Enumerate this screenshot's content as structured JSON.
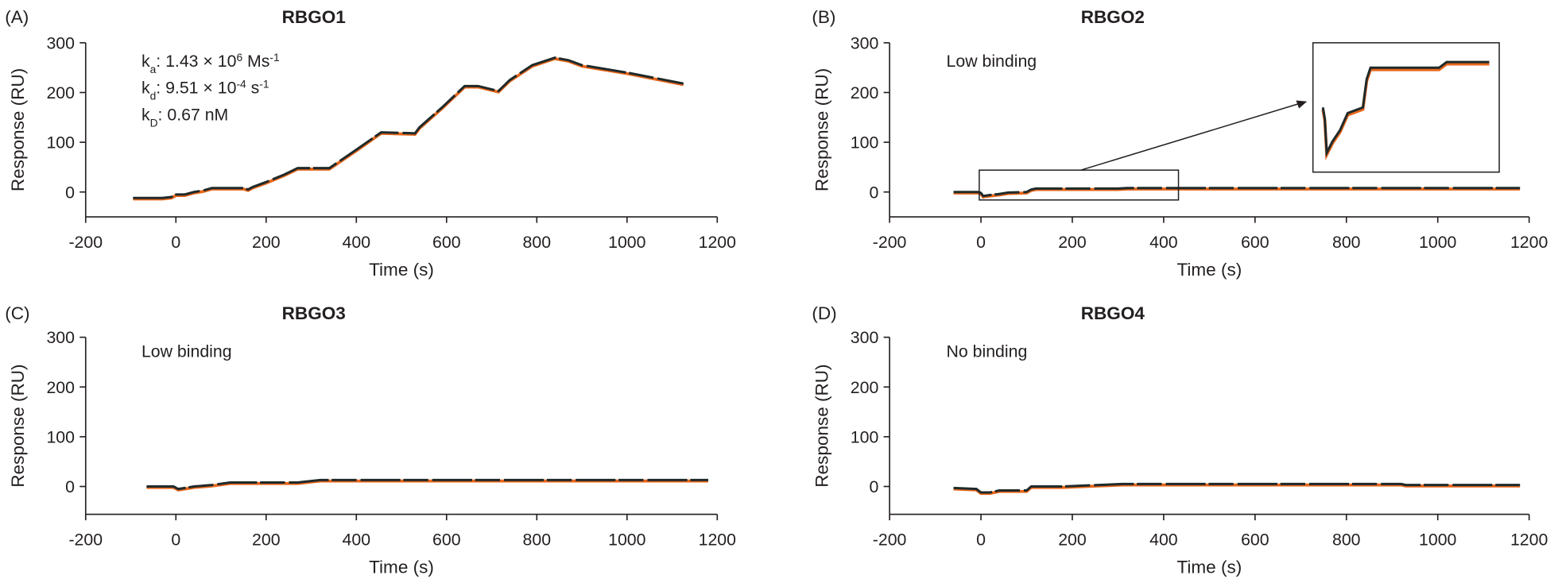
{
  "colors": {
    "measured": "#1f2a2a",
    "fit": "#e8671c",
    "axis": "#231f20"
  },
  "chart_data": [
    {
      "type": "line",
      "panel_label": "(A)",
      "title": "RBGO1",
      "xlabel": "Time (s)",
      "ylabel": "Response (RU)",
      "xlim": [
        -200,
        1200
      ],
      "ylim": [
        -50,
        300
      ],
      "xticks": [
        -200,
        0,
        200,
        400,
        600,
        800,
        1000,
        1200
      ],
      "yticks": [
        0,
        100,
        200,
        300
      ],
      "annotations": [
        {
          "base": "k",
          "sub": "a",
          "text": ": 1.43 × 10",
          "sup": "6",
          "tail": " Ms",
          "tailsup": "-1"
        },
        {
          "base": "k",
          "sub": "d",
          "text": ": 9.51 × 10",
          "sup": "-4",
          "tail": " s",
          "tailsup": "-1"
        },
        {
          "base": "k",
          "sub": "D",
          "text": ": 0.67 nM",
          "sup": "",
          "tail": "",
          "tailsup": ""
        }
      ],
      "series": [
        {
          "x": [
            -95,
            -30,
            -10,
            0,
            20,
            40,
            60,
            80,
            150,
            160,
            170,
            200,
            240,
            270,
            340,
            400,
            455,
            530,
            540,
            590,
            640,
            670,
            715,
            740,
            790,
            840,
            870,
            900,
            1000,
            1125
          ],
          "y": [
            -12,
            -12,
            -10,
            -5,
            -5,
            0,
            3,
            8,
            8,
            5,
            10,
            20,
            35,
            48,
            48,
            85,
            120,
            118,
            130,
            170,
            213,
            213,
            203,
            225,
            255,
            270,
            265,
            255,
            240,
            218
          ]
        }
      ]
    },
    {
      "type": "line",
      "panel_label": "(B)",
      "title": "RBGO2",
      "xlabel": "Time (s)",
      "ylabel": "Response (RU)",
      "xlim": [
        -200,
        1200
      ],
      "ylim": [
        -50,
        300
      ],
      "xticks": [
        -200,
        0,
        200,
        400,
        600,
        800,
        1000,
        1200
      ],
      "yticks": [
        0,
        100,
        200,
        300
      ],
      "annotations": [
        {
          "text": "Low binding"
        }
      ],
      "inset": {
        "xlim": [
          -5,
          432
        ],
        "ylim": [
          -10,
          10
        ]
      },
      "series": [
        {
          "x": [
            -60,
            -5,
            0,
            5,
            20,
            40,
            60,
            100,
            110,
            120,
            300,
            320,
            1180
          ],
          "y": [
            0,
            0,
            -2,
            -8,
            -6,
            -4,
            -1,
            0,
            5,
            7,
            7,
            8,
            8
          ]
        }
      ]
    },
    {
      "type": "line",
      "panel_label": "(C)",
      "title": "RBGO3",
      "xlabel": "Time (s)",
      "ylabel": "Response (RU)",
      "xlim": [
        -200,
        1200
      ],
      "ylim": [
        -50,
        300
      ],
      "xticks": [
        -200,
        0,
        200,
        400,
        600,
        800,
        1000,
        1200
      ],
      "yticks": [
        0,
        100,
        200,
        300
      ],
      "annotations": [
        {
          "text": "Low binding"
        }
      ],
      "series": [
        {
          "x": [
            -65,
            -5,
            5,
            20,
            40,
            80,
            120,
            270,
            320,
            1180
          ],
          "y": [
            0,
            0,
            -5,
            -3,
            0,
            3,
            8,
            8,
            13,
            13
          ]
        }
      ]
    },
    {
      "type": "line",
      "panel_label": "(D)",
      "title": "RBGO4",
      "xlabel": "Time (s)",
      "ylabel": "Response (RU)",
      "xlim": [
        -200,
        1200
      ],
      "ylim": [
        -50,
        300
      ],
      "xticks": [
        -200,
        0,
        200,
        400,
        600,
        800,
        1000,
        1200
      ],
      "yticks": [
        0,
        100,
        200,
        300
      ],
      "annotations": [
        {
          "text": "No binding"
        }
      ],
      "series": [
        {
          "x": [
            -60,
            -10,
            0,
            20,
            40,
            100,
            110,
            180,
            230,
            310,
            920,
            930,
            1180
          ],
          "y": [
            -3,
            -5,
            -12,
            -12,
            -8,
            -8,
            0,
            0,
            2,
            5,
            5,
            3,
            3
          ]
        }
      ]
    }
  ]
}
